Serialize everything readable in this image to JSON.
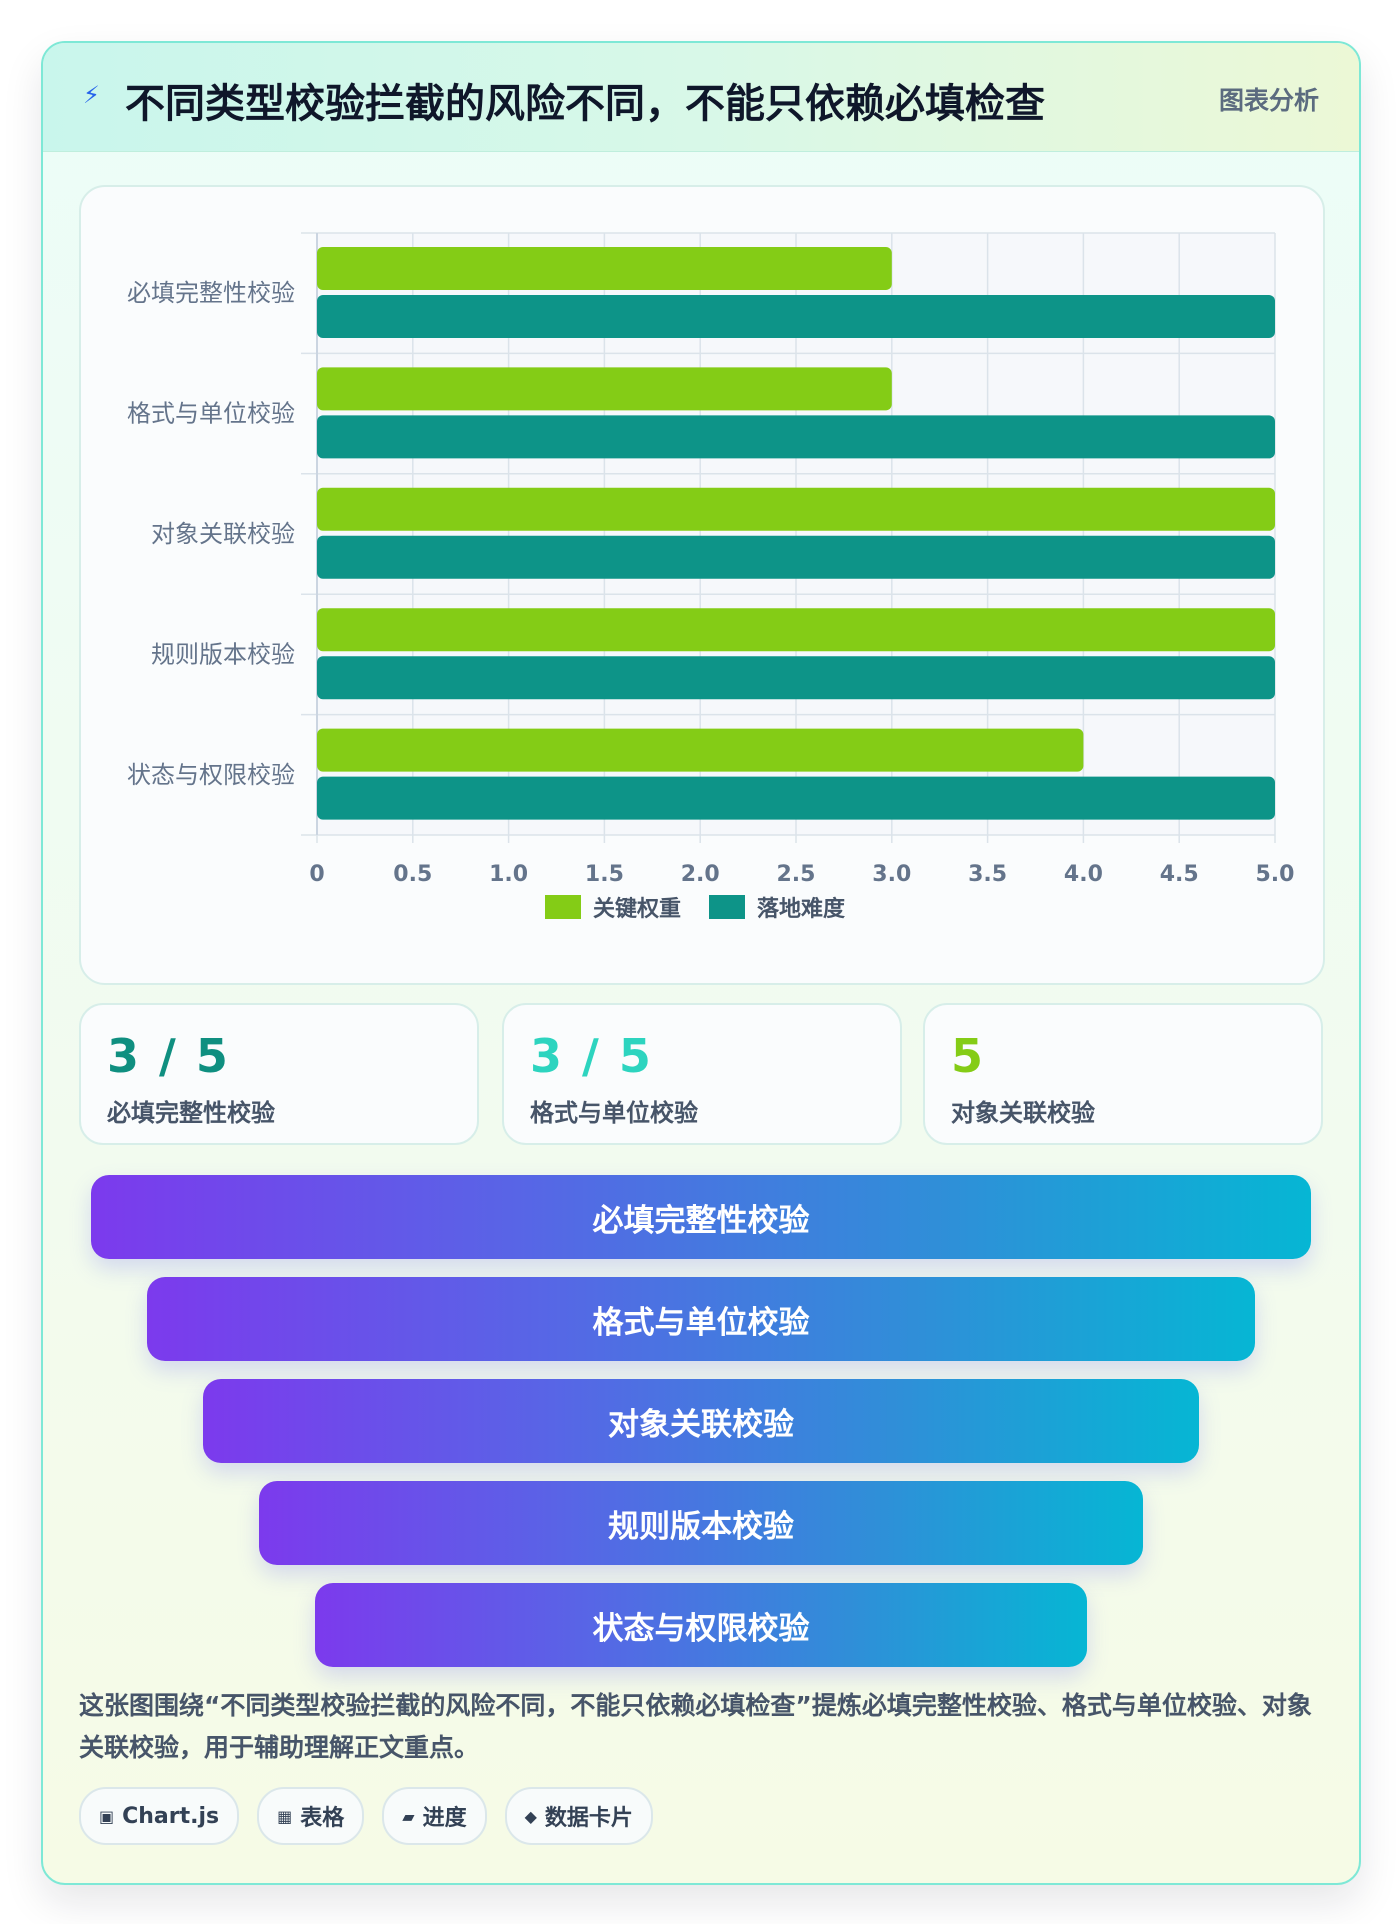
{
  "header": {
    "icon": "lightning-icon",
    "title": "不同类型校验拦截的风险不同，不能只依赖必填检查",
    "tag": "图表分析"
  },
  "chart_data": {
    "type": "bar",
    "orientation": "horizontal",
    "categories": [
      "必填完整性校验",
      "格式与单位校验",
      "对象关联校验",
      "规则版本校验",
      "状态与权限校验"
    ],
    "series": [
      {
        "name": "关键权重",
        "values": [
          3,
          3,
          5,
          5,
          4
        ],
        "color": "#84cc16"
      },
      {
        "name": "落地难度",
        "values": [
          5,
          5,
          5,
          5,
          5
        ],
        "color": "#0d9488"
      }
    ],
    "xlim": [
      0,
      5
    ],
    "xticks": [
      "0",
      "0.5",
      "1.0",
      "1.5",
      "2.0",
      "2.5",
      "3.0",
      "3.5",
      "4.0",
      "4.5",
      "5.0"
    ],
    "grid": true,
    "legend": "bottom"
  },
  "stats": [
    {
      "value": "3 / 5",
      "label": "必填完整性校验",
      "color": "#0f8f80"
    },
    {
      "value": "3 / 5",
      "label": "格式与单位校验",
      "color": "#2dd4bf"
    },
    {
      "value": "5",
      "label": "对象关联校验",
      "color": "#84cc16"
    }
  ],
  "funnel": [
    "必填完整性校验",
    "格式与单位校验",
    "对象关联校验",
    "规则版本校验",
    "状态与权限校验"
  ],
  "summary": "这张图围绕“不同类型校验拦截的风险不同，不能只依赖必填检查”提炼必填完整性校验、格式与单位校验、对象关联校验，用于辅助理解正文重点。",
  "chips": [
    {
      "icon": "▣",
      "label": "Chart.js"
    },
    {
      "icon": "▦",
      "label": "表格"
    },
    {
      "icon": "▰",
      "label": "进度"
    },
    {
      "icon": "◆",
      "label": "数据卡片"
    }
  ]
}
